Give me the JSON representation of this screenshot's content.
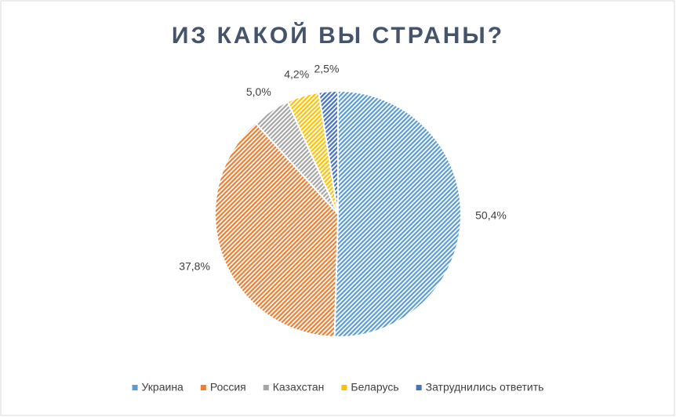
{
  "chart_data": {
    "type": "pie",
    "title": "ИЗ КАКОЙ ВЫ СТРАНЫ?",
    "categories": [
      "Украина",
      "Россия",
      "Казахстан",
      "Беларусь",
      "Затруднились ответить"
    ],
    "values": [
      50.4,
      37.8,
      5.0,
      4.2,
      2.5
    ],
    "value_labels": [
      "50,4%",
      "37,8%",
      "5,0%",
      "4,2%",
      "2,5%"
    ],
    "colors": [
      "#5b9bd5",
      "#ed7d31",
      "#a5a5a5",
      "#ffc000",
      "#4472c4"
    ],
    "legend": "bottom"
  }
}
